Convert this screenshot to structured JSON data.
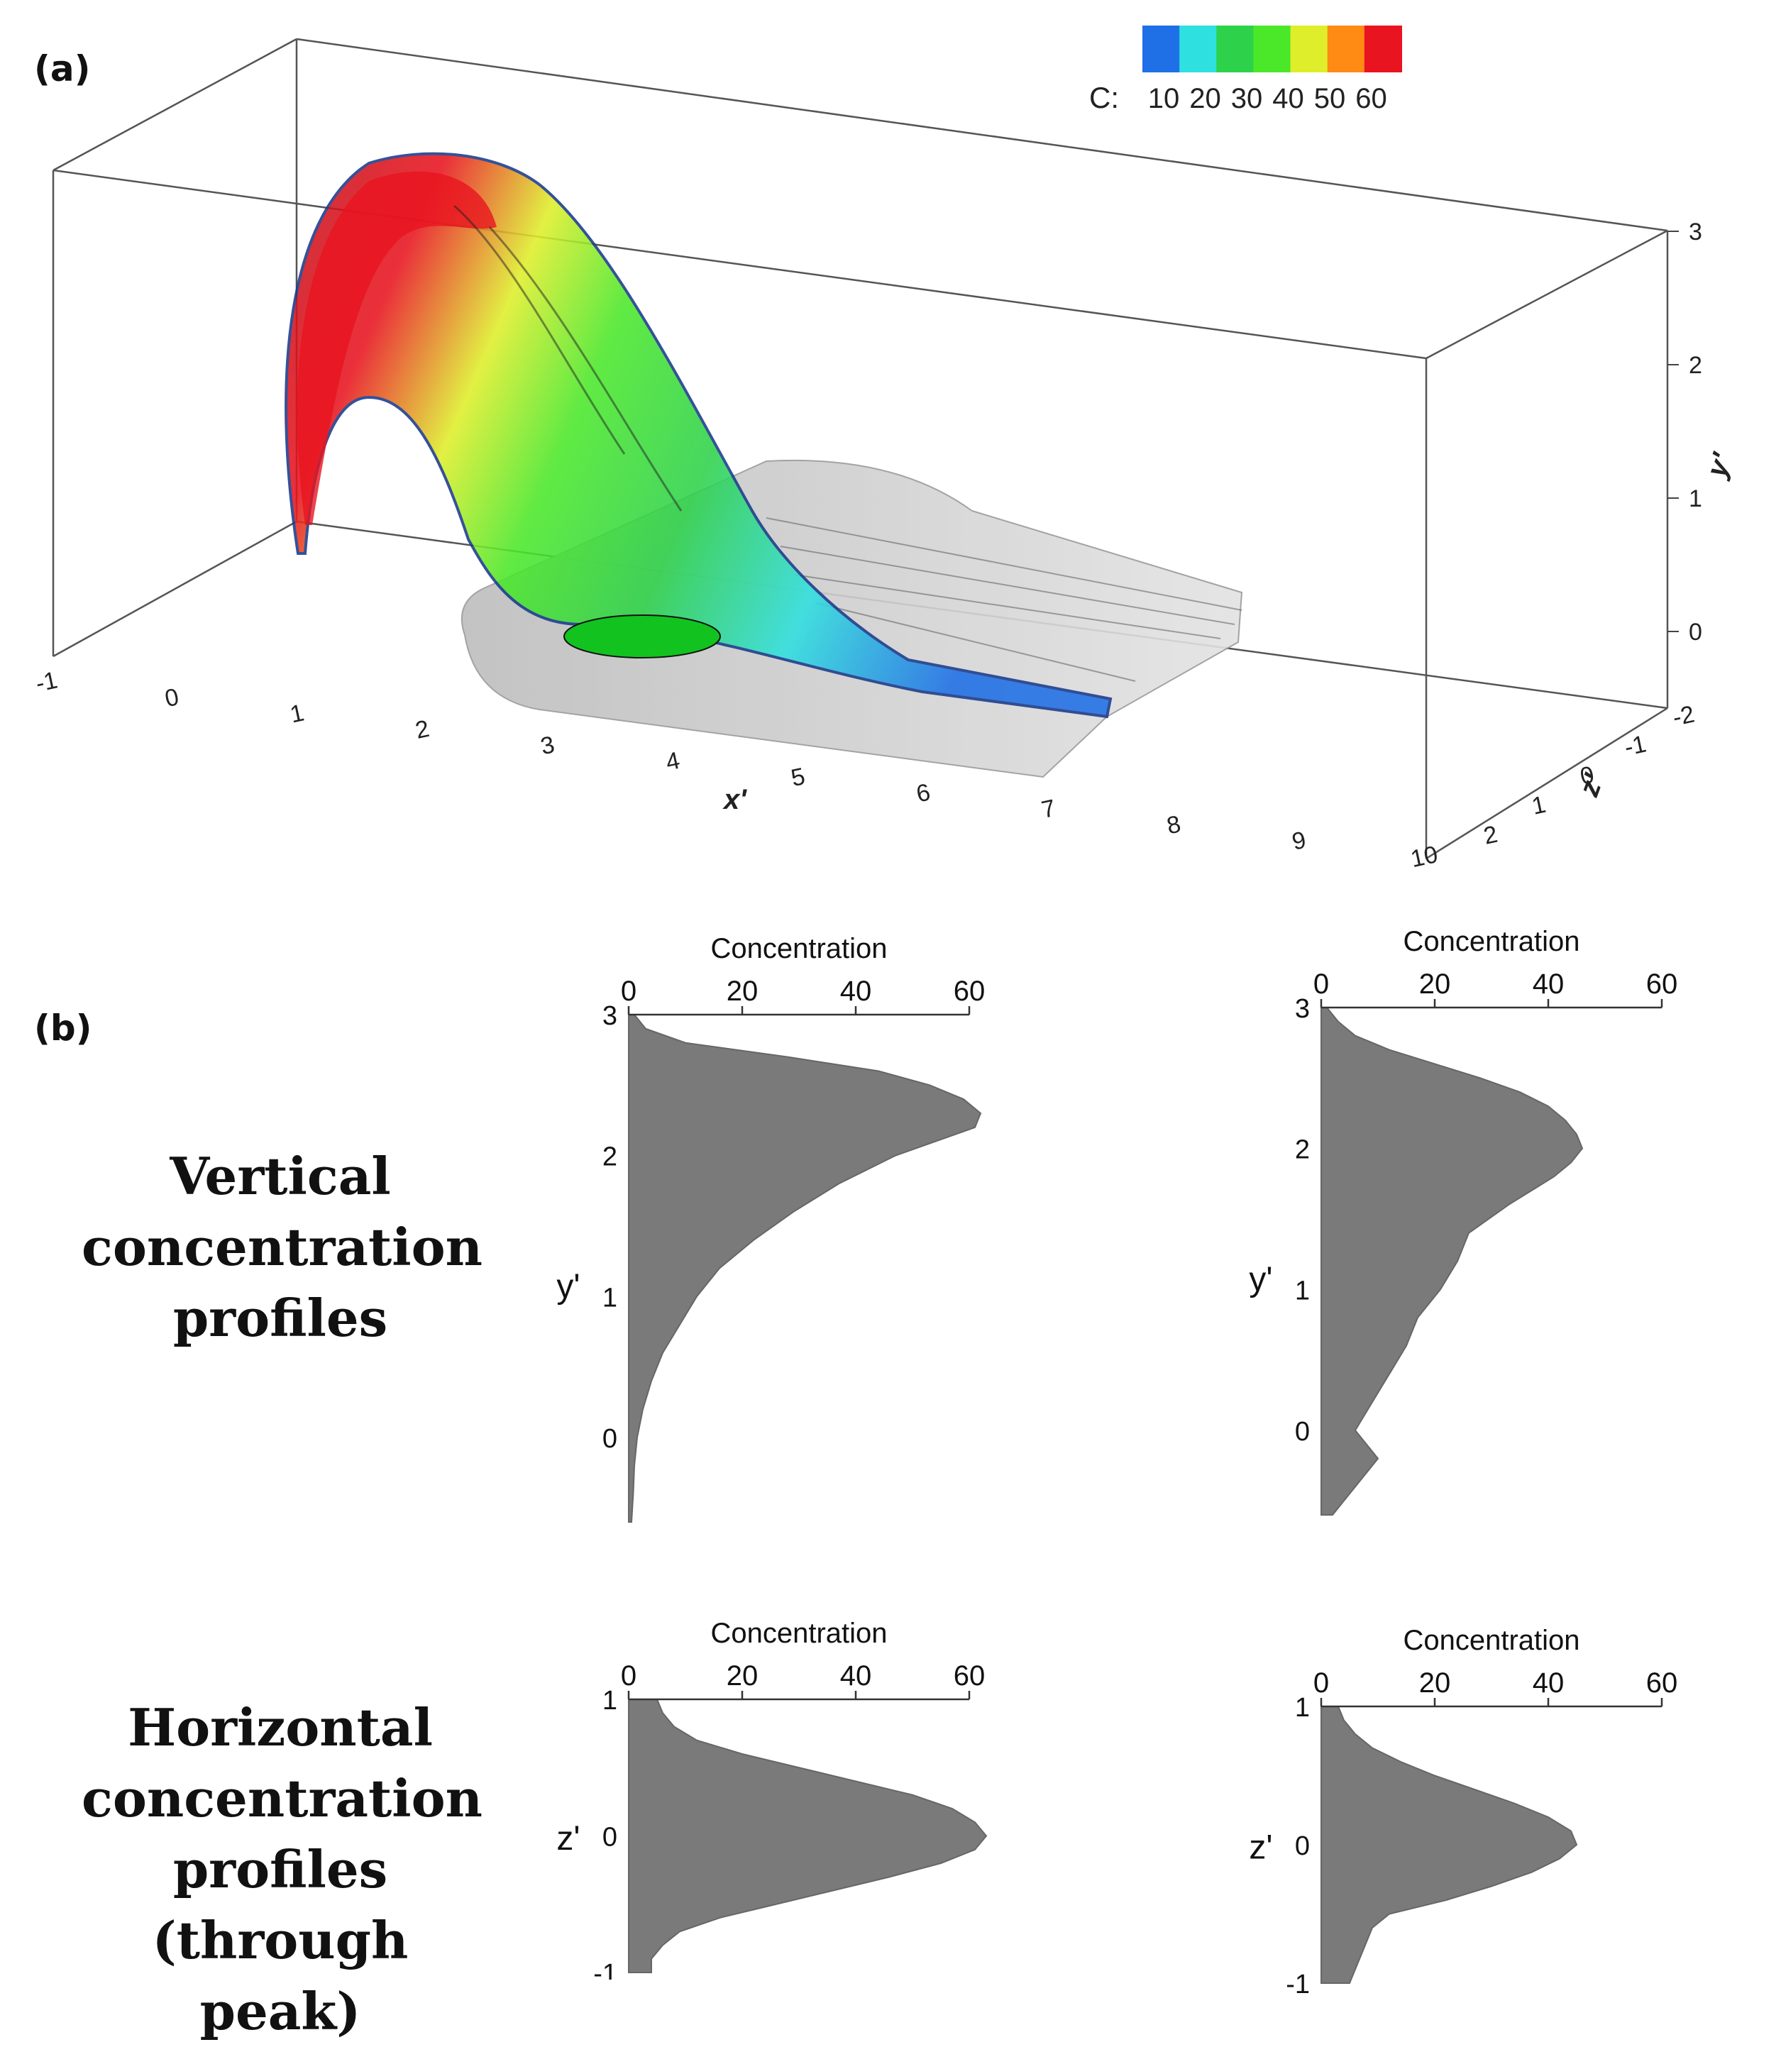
{
  "panels": {
    "a": "(a)",
    "b": "(b)"
  },
  "rows": {
    "vertical": [
      "Vertical",
      "concentration",
      "profiles"
    ],
    "horizontal": [
      "Horizontal",
      "concentration",
      "profiles",
      "(through peak)"
    ]
  },
  "colors": {
    "profile_fill": "#7a7a7a",
    "axis": "#333333"
  },
  "chart_data": [
    {
      "id": "3d-plume",
      "type": "surface",
      "colorbar": {
        "prefix": "C:",
        "ticks": [
          "10",
          "20",
          "30",
          "40",
          "50",
          "60"
        ],
        "colors": [
          "#1f6fe6",
          "#2fe0e0",
          "#2ed24a",
          "#4be82a",
          "#dfee2a",
          "#ff8a14",
          "#e8141f"
        ]
      },
      "x_axis": {
        "label": "x'",
        "ticks": [
          "-1",
          "0",
          "1",
          "2",
          "3",
          "4",
          "5",
          "6",
          "7",
          "8",
          "9",
          "10"
        ]
      },
      "y_axis": {
        "label": "y'",
        "ticks": [
          "0",
          "1",
          "2",
          "3"
        ]
      },
      "z_axis": {
        "label": "z'",
        "ticks": [
          "-2",
          "-1",
          "0",
          "1",
          "2"
        ]
      }
    },
    {
      "id": "v-left",
      "type": "area",
      "top_axis": {
        "label": "Concentration",
        "ticks": [
          "0",
          "20",
          "40",
          "60"
        ],
        "range": [
          0,
          60
        ]
      },
      "side_axis": {
        "label": "y'",
        "ticks": [
          "3",
          "2",
          "1",
          "0"
        ],
        "range": [
          -0.65,
          3.0
        ]
      },
      "y": [
        3.0,
        2.9,
        2.8,
        2.7,
        2.6,
        2.5,
        2.4,
        2.3,
        2.2,
        2.1,
        2.0,
        1.8,
        1.6,
        1.4,
        1.2,
        1.0,
        0.8,
        0.6,
        0.4,
        0.2,
        0.0,
        -0.2,
        -0.4,
        -0.6
      ],
      "value": [
        1,
        3,
        10,
        28,
        44,
        53,
        59,
        62,
        61,
        54,
        47,
        37,
        29,
        22,
        16,
        12,
        9,
        6,
        4,
        2.5,
        1.5,
        1,
        0.8,
        0.5
      ]
    },
    {
      "id": "v-right",
      "type": "area",
      "top_axis": {
        "label": "Concentration",
        "ticks": [
          "0",
          "20",
          "40",
          "60"
        ],
        "range": [
          0,
          60
        ]
      },
      "side_axis": {
        "label": "y'",
        "ticks": [
          "3",
          "2",
          "1",
          "0"
        ],
        "range": [
          -0.65,
          3.0
        ]
      },
      "y": [
        3.0,
        2.9,
        2.8,
        2.7,
        2.6,
        2.5,
        2.4,
        2.3,
        2.2,
        2.1,
        2.0,
        1.9,
        1.8,
        1.6,
        1.4,
        1.2,
        1.0,
        0.8,
        0.6,
        0.4,
        0.2,
        0.0,
        -0.2,
        -0.4,
        -0.6
      ],
      "value": [
        1,
        3,
        6,
        12,
        20,
        28,
        35,
        40,
        43,
        45,
        46,
        44,
        41,
        33,
        26,
        24,
        21,
        17,
        15,
        12,
        9,
        6,
        10,
        6,
        2
      ]
    },
    {
      "id": "h-left",
      "type": "area",
      "top_axis": {
        "label": "Concentration",
        "ticks": [
          "0",
          "20",
          "40",
          "60"
        ],
        "range": [
          0,
          60
        ]
      },
      "side_axis": {
        "label": "z'",
        "ticks": [
          "1",
          "0",
          "-1"
        ],
        "range": [
          -1.0,
          1.0
        ]
      },
      "z": [
        1.0,
        0.9,
        0.8,
        0.7,
        0.6,
        0.5,
        0.4,
        0.3,
        0.2,
        0.1,
        0.0,
        -0.1,
        -0.2,
        -0.3,
        -0.4,
        -0.5,
        -0.6,
        -0.7,
        -0.8,
        -0.9,
        -1.0
      ],
      "value": [
        5,
        6,
        8,
        12,
        20,
        30,
        40,
        50,
        57,
        61,
        63,
        61,
        55,
        46,
        36,
        26,
        16,
        9,
        6,
        4,
        4
      ]
    },
    {
      "id": "h-right",
      "type": "area",
      "top_axis": {
        "label": "Concentration",
        "ticks": [
          "0",
          "20",
          "40",
          "60"
        ],
        "range": [
          0,
          60
        ]
      },
      "side_axis": {
        "label": "z'",
        "ticks": [
          "1",
          "0",
          "-1"
        ],
        "range": [
          -1.0,
          1.0
        ]
      },
      "z": [
        1.0,
        0.9,
        0.8,
        0.7,
        0.6,
        0.5,
        0.4,
        0.3,
        0.2,
        0.1,
        0.0,
        -0.1,
        -0.2,
        -0.3,
        -0.4,
        -0.5,
        -0.6,
        -0.7,
        -0.8,
        -0.9,
        -1.0
      ],
      "value": [
        3,
        4,
        6,
        9,
        14,
        20,
        27,
        34,
        40,
        44,
        45,
        42,
        37,
        30,
        22,
        12,
        9,
        8,
        7,
        6,
        5
      ]
    }
  ]
}
